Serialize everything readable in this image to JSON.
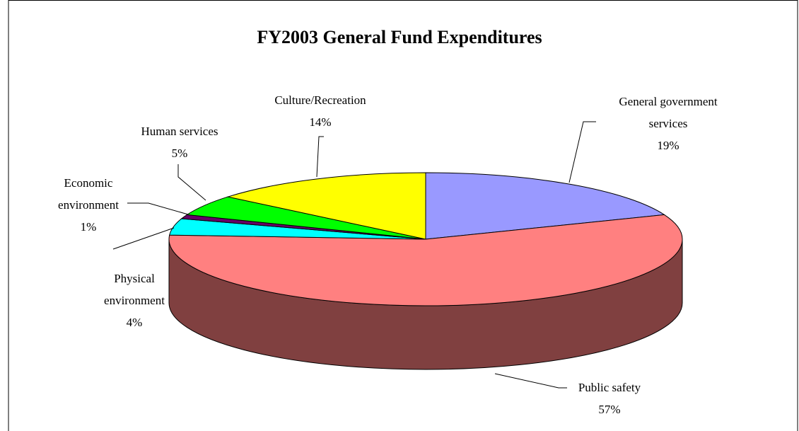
{
  "chart_data": {
    "type": "pie",
    "title": "FY2003 General Fund Expenditures",
    "categories": [
      "General government services",
      "Public safety",
      "Physical environment",
      "Economic environment",
      "Human services",
      "Culture/Recreation"
    ],
    "values": [
      19,
      57,
      4,
      1,
      5,
      14
    ],
    "value_labels": [
      "19%",
      "57%",
      "4%",
      "1%",
      "5%",
      "14%"
    ],
    "colors": [
      "#9999ff",
      "#ff8080",
      "#00ffff",
      "#660066",
      "#00ff00",
      "#ffff00"
    ],
    "three_d": true
  }
}
